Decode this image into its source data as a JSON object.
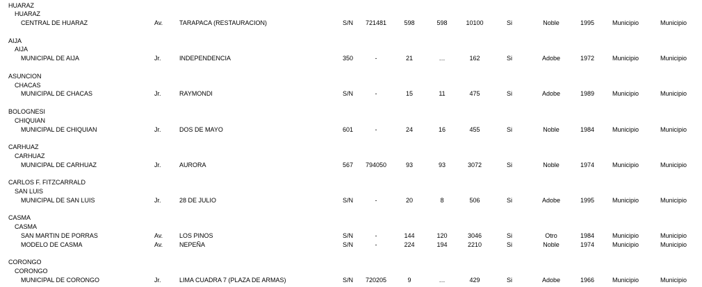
{
  "groups": [
    {
      "province": "HUARAZ",
      "district": "HUARAZ",
      "schools": [
        {
          "name": "CENTRAL DE HUARAZ",
          "via": "Av.",
          "street": "TARAPACA (RESTAURACION)",
          "number": "S/N",
          "phone": "721481",
          "c1": "598",
          "c2": "598",
          "c3": "10100",
          "c4": "Si",
          "material": "Noble",
          "year": "1995",
          "owner": "Municipio",
          "admin": "Municipio"
        }
      ]
    },
    {
      "province": "AIJA",
      "district": "AIJA",
      "schools": [
        {
          "name": "MUNICIPAL DE AIJA",
          "via": "Jr.",
          "street": "INDEPENDENCIA",
          "number": "350",
          "phone": "-",
          "c1": "21",
          "c2": "…",
          "c3": "162",
          "c4": "Si",
          "material": "Adobe",
          "year": "1972",
          "owner": "Municipio",
          "admin": "Municipio"
        }
      ]
    },
    {
      "province": "ASUNCION",
      "district": "CHACAS",
      "schools": [
        {
          "name": "MUNICIPAL DE CHACAS",
          "via": "Jr.",
          "street": "RAYMONDI",
          "number": "S/N",
          "phone": "-",
          "c1": "15",
          "c2": "11",
          "c3": "475",
          "c4": "Si",
          "material": "Adobe",
          "year": "1989",
          "owner": "Municipio",
          "admin": "Municipio"
        }
      ]
    },
    {
      "province": "BOLOGNESI",
      "district": "CHIQUIAN",
      "schools": [
        {
          "name": "MUNICIPAL DE CHIQUIAN",
          "via": "Jr.",
          "street": "DOS DE MAYO",
          "number": "601",
          "phone": "-",
          "c1": "24",
          "c2": "16",
          "c3": "455",
          "c4": "Si",
          "material": "Noble",
          "year": "1984",
          "owner": "Municipio",
          "admin": "Municipio"
        }
      ]
    },
    {
      "province": "CARHUAZ",
      "district": "CARHUAZ",
      "schools": [
        {
          "name": "MUNICIPAL DE CARHUAZ",
          "via": "Jr.",
          "street": "AURORA",
          "number": "567",
          "phone": "794050",
          "c1": "93",
          "c2": "93",
          "c3": "3072",
          "c4": "Si",
          "material": "Noble",
          "year": "1974",
          "owner": "Municipio",
          "admin": "Municipio"
        }
      ]
    },
    {
      "province": "CARLOS F. FITZCARRALD",
      "district": "SAN LUIS",
      "schools": [
        {
          "name": "MUNICIPAL DE SAN LUIS",
          "via": "Jr.",
          "street": "28 DE JULIO",
          "number": "S/N",
          "phone": "-",
          "c1": "20",
          "c2": "8",
          "c3": "506",
          "c4": "Si",
          "material": "Adobe",
          "year": "1995",
          "owner": "Municipio",
          "admin": "Municipio"
        }
      ]
    },
    {
      "province": "CASMA",
      "district": "CASMA",
      "schools": [
        {
          "name": "SAN MARTIN DE PORRAS",
          "via": "Av.",
          "street": "LOS PINOS",
          "number": "S/N",
          "phone": "-",
          "c1": "144",
          "c2": "120",
          "c3": "3046",
          "c4": "Si",
          "material": "Otro",
          "year": "1984",
          "owner": "Municipio",
          "admin": "Municipio"
        },
        {
          "name": "MODELO DE CASMA",
          "via": "Av.",
          "street": "NEPEÑA",
          "number": "S/N",
          "phone": "-",
          "c1": "224",
          "c2": "194",
          "c3": "2210",
          "c4": "Si",
          "material": "Noble",
          "year": "1974",
          "owner": "Municipio",
          "admin": "Municipio"
        }
      ]
    },
    {
      "province": "CORONGO",
      "district": "CORONGO",
      "schools": [
        {
          "name": "MUNICIPAL DE CORONGO",
          "via": "Jr.",
          "street": "LIMA  CUADRA  7  (PLAZA DE ARMAS)",
          "number": "S/N",
          "phone": "720205",
          "c1": "9",
          "c2": "…",
          "c3": "429",
          "c4": "Si",
          "material": "Adobe",
          "year": "1966",
          "owner": "Municipio",
          "admin": "Municipio"
        }
      ]
    }
  ]
}
